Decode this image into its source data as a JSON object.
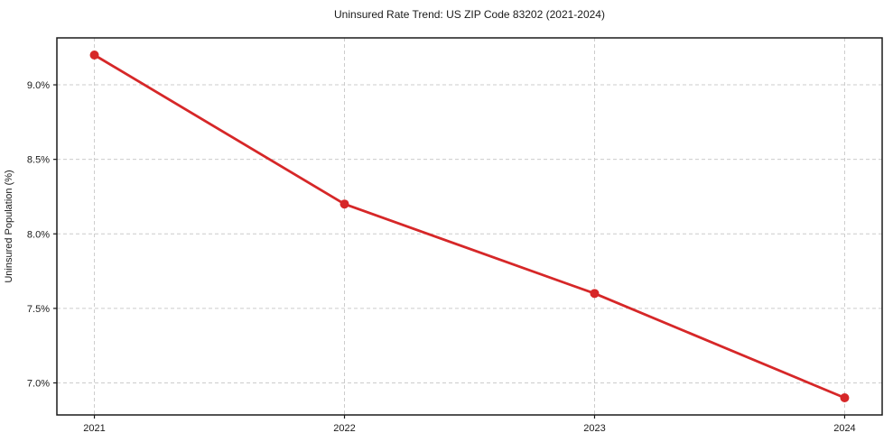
{
  "page": {
    "background": "#ffffff"
  },
  "chart_data": {
    "type": "line",
    "title": "Uninsured Rate Trend: US ZIP Code 83202 (2021-2024)",
    "xlabel": "",
    "ylabel": "Uninsured Population (%)",
    "x": [
      2021,
      2022,
      2023,
      2024
    ],
    "values": [
      9.2,
      8.2,
      7.6,
      6.9
    ],
    "xlim": [
      2020.85,
      2024.15
    ],
    "ylim": [
      6.785,
      9.315
    ],
    "xticks": {
      "values": [
        2021,
        2022,
        2023,
        2024
      ],
      "labels": [
        "2021",
        "2022",
        "2023",
        "2024"
      ]
    },
    "yticks": {
      "values": [
        7.0,
        7.5,
        8.0,
        8.5,
        9.0
      ],
      "labels": [
        "7.0%",
        "7.5%",
        "8.0%",
        "8.5%",
        "9.0%"
      ]
    },
    "grid": true,
    "grid_style": "dashed",
    "legend_position": "none",
    "colors": {
      "line": "#d62728",
      "marker": "#d62728",
      "grid": "#cccccc",
      "spine": "#1a1a1a",
      "text": "#1a1a1a"
    }
  }
}
